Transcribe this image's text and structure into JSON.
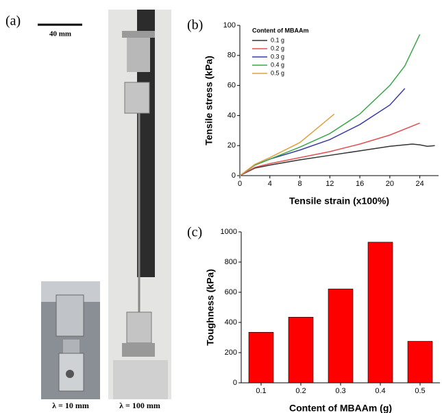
{
  "panels": {
    "a": "(a)",
    "b": "(b)",
    "c": "(c)"
  },
  "scale_bar": "40 mm",
  "photo_labels": [
    "λ = 10 mm",
    "λ = 100 mm"
  ],
  "chart_data": [
    {
      "type": "line",
      "xlabel": "Tensile strain (x100%)",
      "ylabel": "Tensile stress (kPa)",
      "xlim": [
        0,
        26.5
      ],
      "xticks": [
        0,
        4,
        8,
        12,
        16,
        20,
        24
      ],
      "ylim": [
        0,
        100
      ],
      "yticks": [
        0,
        20,
        40,
        60,
        80,
        100
      ],
      "legend_title": "Content of MBAAm",
      "legend": "upper left",
      "series": [
        {
          "name": "0.1 g",
          "color": "#333333",
          "x": [
            0,
            2,
            4,
            8,
            12,
            16,
            20,
            23,
            24,
            25,
            26
          ],
          "values": [
            0,
            5,
            7,
            10.5,
            13.5,
            16.5,
            19.5,
            21,
            20.5,
            19.5,
            20
          ]
        },
        {
          "name": "0.2 g",
          "color": "#e05050",
          "x": [
            0,
            2,
            4,
            8,
            12,
            16,
            20,
            24
          ],
          "values": [
            0,
            5.5,
            8,
            12,
            16,
            21,
            27,
            35
          ]
        },
        {
          "name": "0.3 g",
          "color": "#3a3aa8",
          "x": [
            0,
            2,
            4,
            8,
            12,
            16,
            20,
            22
          ],
          "values": [
            0,
            7,
            11,
            17,
            24,
            34,
            47,
            58
          ]
        },
        {
          "name": "0.4 g",
          "color": "#3aa84a",
          "x": [
            0,
            2,
            4,
            8,
            12,
            16,
            20,
            22,
            24
          ],
          "values": [
            0,
            7,
            11,
            19,
            28,
            41,
            60,
            73,
            94
          ]
        },
        {
          "name": "0.5 g",
          "color": "#e0a040",
          "x": [
            0,
            2,
            4,
            8,
            12.6
          ],
          "values": [
            0,
            7.5,
            12,
            22,
            41
          ]
        }
      ]
    },
    {
      "type": "bar",
      "xlabel": "Content of MBAAm (g)",
      "ylabel": "Toughness (kPa)",
      "categories": [
        "0.1",
        "0.2",
        "0.3",
        "0.4",
        "0.5"
      ],
      "values": [
        335,
        435,
        622,
        932,
        275
      ],
      "color": "#ff0000",
      "ylim": [
        0,
        1000
      ],
      "yticks": [
        0,
        200,
        400,
        600,
        800,
        1000
      ]
    }
  ]
}
